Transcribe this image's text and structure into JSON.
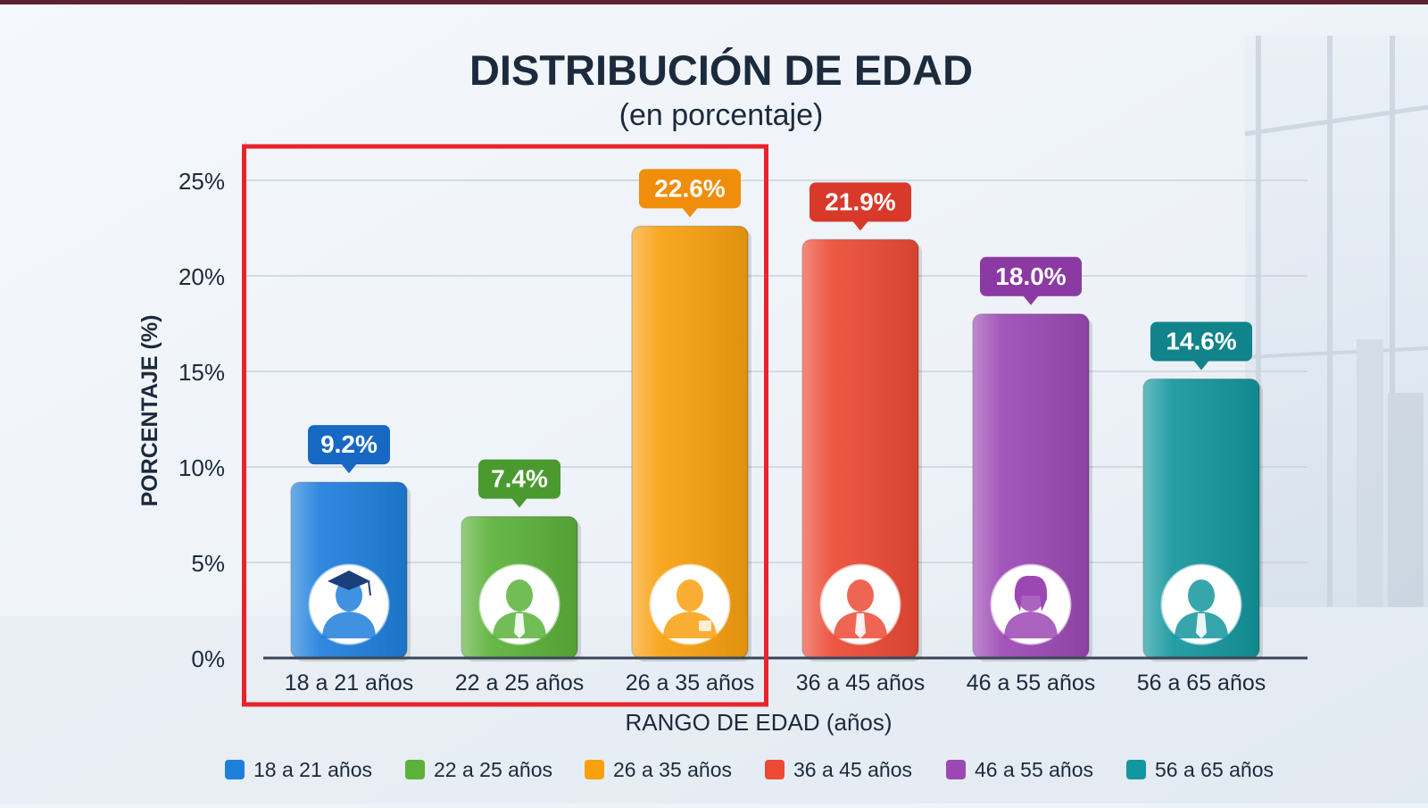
{
  "chart_data": {
    "type": "bar",
    "title": "DISTRIBUCIÓN DE EDAD",
    "subtitle": "(en porcentaje)",
    "xlabel": "RANGO DE EDAD (años)",
    "ylabel": "PORCENTAJE (%)",
    "ylim": [
      0,
      25
    ],
    "yticks": [
      0,
      5,
      10,
      15,
      20,
      25
    ],
    "ytick_suffix": "%",
    "grid": true,
    "legend_position": "bottom",
    "categories": [
      "18 a 21 años",
      "22 a 25 años",
      "26 a 35 años",
      "36 a 45 años",
      "46 a 55 años",
      "56 a 65 años"
    ],
    "values": [
      9.2,
      7.4,
      22.6,
      21.9,
      18.0,
      14.6
    ],
    "value_labels": [
      "9.2%",
      "7.4%",
      "22.6%",
      "21.9%",
      "18.0%",
      "14.6%"
    ],
    "colors": [
      "#1e7fdc",
      "#5bb13a",
      "#f8a00f",
      "#ec4a35",
      "#9c48b4",
      "#13969d"
    ],
    "label_colors": [
      "#1668c2",
      "#4a9a2f",
      "#f08d0a",
      "#d8392a",
      "#8a3aa2",
      "#11838a"
    ],
    "icons": [
      "graduate-person-icon",
      "young-man-icon",
      "man-icon",
      "man-tie-icon",
      "woman-icon",
      "older-man-icon"
    ],
    "highlight": {
      "categories": [
        "18 a 21 años",
        "22 a 25 años",
        "26 a 35 años"
      ],
      "color": "#e8232a"
    }
  }
}
